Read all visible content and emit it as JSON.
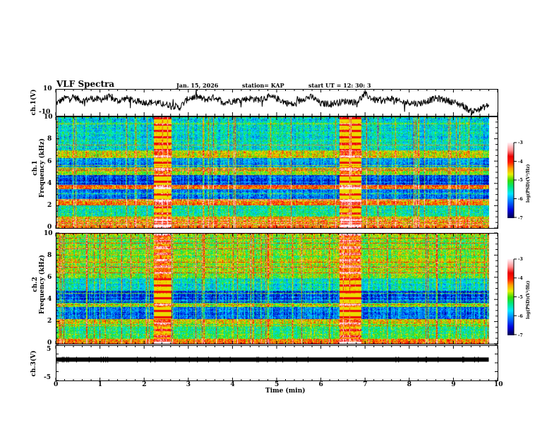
{
  "header": {
    "title": "VLF Spectra",
    "date": "Jan. 15, 2026",
    "station": "station= KAP",
    "start": "start UT =  12: 30: 3"
  },
  "chart_data": [
    {
      "type": "line",
      "name": "ch1-waveform",
      "ylabel": "ch.1(V)",
      "ylim": [
        -10,
        10
      ],
      "yticks": [
        "10",
        "-10"
      ],
      "xlim": [
        0,
        10
      ],
      "x_end": 9.8,
      "samples_x": [
        0,
        0.2,
        0.4,
        0.6,
        0.8,
        1.0,
        1.2,
        1.4,
        1.6,
        1.8,
        2.0,
        2.2,
        2.4,
        2.6,
        2.8,
        3.0,
        3.2,
        3.4,
        3.6,
        3.8,
        4.0,
        4.2,
        4.4,
        4.6,
        4.8,
        5.0,
        5.2,
        5.4,
        5.6,
        5.8,
        6.0,
        6.2,
        6.4,
        6.6,
        6.8,
        7.0,
        7.2,
        7.4,
        7.6,
        7.8,
        8.0,
        8.2,
        8.4,
        8.6,
        8.8,
        9.0,
        9.2,
        9.4,
        9.6,
        9.8
      ],
      "samples_y": [
        -1,
        3,
        4,
        1,
        3,
        2,
        4,
        1,
        3,
        1,
        0,
        0,
        -1,
        -2,
        -4,
        3,
        4,
        2,
        4,
        0,
        1,
        2,
        3,
        2,
        4,
        3,
        0,
        -2,
        3,
        4,
        -1,
        -1,
        0,
        1,
        0,
        6,
        2,
        1,
        3,
        0,
        0,
        -1,
        1,
        3,
        2,
        0,
        -2,
        -7,
        -5,
        -2
      ]
    },
    {
      "type": "heatmap",
      "name": "ch1-spectrogram",
      "ylabel_line1": "ch.1",
      "ylabel_line2": "Frequency (kHz)",
      "ylim": [
        0,
        10
      ],
      "yticks": [
        "0",
        "2",
        "4",
        "6",
        "8",
        "10"
      ],
      "xlim": [
        0,
        10
      ],
      "x_end": 9.8,
      "colorbar": {
        "label": "log(PSD)(V²/Hz)",
        "range": [
          -7,
          -3
        ],
        "ticks": [
          "-3",
          "-4",
          "-5",
          "-6",
          "-7"
        ]
      },
      "bands_khz": [
        {
          "f": [
            0.0,
            0.3
          ],
          "level": -4.2
        },
        {
          "f": [
            0.3,
            1.0
          ],
          "level": -4.5
        },
        {
          "f": [
            1.0,
            2.0
          ],
          "level": -5.4
        },
        {
          "f": [
            2.0,
            2.6
          ],
          "level": -4.3
        },
        {
          "f": [
            2.6,
            3.5
          ],
          "level": -6.1
        },
        {
          "f": [
            3.5,
            3.9
          ],
          "level": -4.2
        },
        {
          "f": [
            3.9,
            4.8
          ],
          "level": -6.3
        },
        {
          "f": [
            4.8,
            5.5
          ],
          "level": -4.8
        },
        {
          "f": [
            5.5,
            6.3
          ],
          "level": -5.9
        },
        {
          "f": [
            6.3,
            7.0
          ],
          "level": -4.6
        },
        {
          "f": [
            7.0,
            10.0
          ],
          "level": -5.6
        }
      ],
      "events_min": [
        [
          2.2,
          2.6
        ],
        [
          6.4,
          6.9
        ]
      ]
    },
    {
      "type": "heatmap",
      "name": "ch2-spectrogram",
      "ylabel_line1": "ch.2",
      "ylabel_line2": "Frequency (kHz)",
      "ylim": [
        0,
        10
      ],
      "yticks": [
        "0",
        "2",
        "4",
        "6",
        "8",
        "10"
      ],
      "xlim": [
        0,
        10
      ],
      "x_end": 9.8,
      "colorbar": {
        "label": "log(PSD)(V²/Hz)",
        "range": [
          -7,
          -3
        ],
        "ticks": [
          "-3",
          "-4",
          "-5",
          "-6",
          "-7"
        ]
      },
      "bands_khz": [
        {
          "f": [
            0.0,
            0.4
          ],
          "level": -4.2
        },
        {
          "f": [
            0.4,
            1.8
          ],
          "level": -5.2
        },
        {
          "f": [
            1.8,
            2.2
          ],
          "level": -4.6
        },
        {
          "f": [
            2.2,
            3.3
          ],
          "level": -6.1
        },
        {
          "f": [
            3.3,
            3.7
          ],
          "level": -5.0
        },
        {
          "f": [
            3.7,
            4.8
          ],
          "level": -6.3
        },
        {
          "f": [
            4.8,
            6.0
          ],
          "level": -5.5
        },
        {
          "f": [
            6.0,
            10.0
          ],
          "level": -4.9
        }
      ],
      "events_min": [
        [
          2.2,
          2.6
        ],
        [
          6.4,
          6.9
        ]
      ]
    },
    {
      "type": "line",
      "name": "ch3-waveform",
      "ylabel": "ch.3(V)",
      "ylim": [
        -5,
        5
      ],
      "yticks": [
        "5",
        "-5"
      ],
      "xlim": [
        0,
        10
      ],
      "x_end": 9.8,
      "level_v": 1.0,
      "xlabel": "Time (min)",
      "xticks": [
        "0",
        "1",
        "2",
        "3",
        "4",
        "5",
        "6",
        "7",
        "8",
        "9",
        "10"
      ]
    }
  ]
}
